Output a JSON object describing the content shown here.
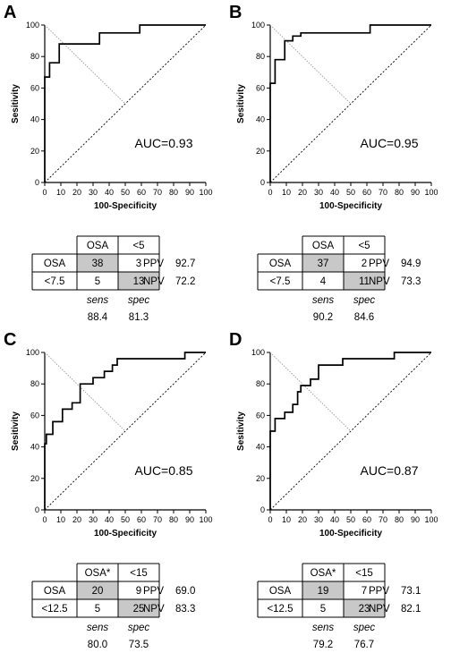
{
  "panels": [
    {
      "letter": "A",
      "chart_data": {
        "type": "line",
        "xlabel": "100-Specificity",
        "ylabel": "Sesitivity",
        "xlim": [
          0,
          100
        ],
        "ylim": [
          0,
          100
        ],
        "xticks": [
          "0",
          "10",
          "20",
          "30",
          "40",
          "50",
          "60",
          "70",
          "80",
          "90",
          "100"
        ],
        "yticks": [
          "0",
          "20",
          "40",
          "60",
          "80",
          "100"
        ],
        "roc": [
          [
            0,
            0
          ],
          [
            0,
            67
          ],
          [
            3,
            67
          ],
          [
            3,
            76
          ],
          [
            9,
            76
          ],
          [
            9,
            88
          ],
          [
            34,
            88
          ],
          [
            34,
            95
          ],
          [
            59,
            95
          ],
          [
            59,
            100
          ],
          [
            100,
            100
          ]
        ],
        "youden_line": [
          [
            0,
            100
          ],
          [
            50,
            50
          ]
        ],
        "annotation": "AUC=0.93"
      },
      "table": {
        "header": [
          "OSA",
          "<5"
        ],
        "rows": [
          {
            "label": "OSA",
            "cells": [
              "38",
              "3"
            ],
            "metric": "PPV",
            "metric_value": "92.7"
          },
          {
            "label": "<7.5",
            "cells": [
              "5",
              "13"
            ],
            "metric": "NPV",
            "metric_value": "72.2"
          }
        ],
        "shaded": [
          [
            0,
            0
          ],
          [
            1,
            1
          ]
        ],
        "footer_labels": [
          "sens",
          "spec"
        ],
        "footer_values": [
          "88.4",
          "81.3"
        ]
      }
    },
    {
      "letter": "B",
      "chart_data": {
        "type": "line",
        "xlabel": "100-Specificity",
        "ylabel": "Sesitivity",
        "xlim": [
          0,
          100
        ],
        "ylim": [
          0,
          100
        ],
        "xticks": [
          "0",
          "10",
          "20",
          "30",
          "40",
          "50",
          "60",
          "70",
          "80",
          "90",
          "100"
        ],
        "yticks": [
          "0",
          "20",
          "40",
          "60",
          "80",
          "100"
        ],
        "roc": [
          [
            0,
            0
          ],
          [
            0,
            63
          ],
          [
            3,
            63
          ],
          [
            3,
            78
          ],
          [
            9,
            78
          ],
          [
            9,
            90
          ],
          [
            14,
            90
          ],
          [
            14,
            93
          ],
          [
            19,
            93
          ],
          [
            19,
            95
          ],
          [
            62,
            95
          ],
          [
            62,
            100
          ],
          [
            100,
            100
          ]
        ],
        "youden_line": [
          [
            0,
            100
          ],
          [
            50,
            50
          ]
        ],
        "annotation": "AUC=0.95"
      },
      "table": {
        "header": [
          "OSA",
          "<5"
        ],
        "rows": [
          {
            "label": "OSA",
            "cells": [
              "37",
              "2"
            ],
            "metric": "PPV",
            "metric_value": "94.9"
          },
          {
            "label": "<7.5",
            "cells": [
              "4",
              "11"
            ],
            "metric": "NPV",
            "metric_value": "73.3"
          }
        ],
        "shaded": [
          [
            0,
            0
          ],
          [
            1,
            1
          ]
        ],
        "footer_labels": [
          "sens",
          "spec"
        ],
        "footer_values": [
          "90.2",
          "84.6"
        ]
      }
    },
    {
      "letter": "C",
      "chart_data": {
        "type": "line",
        "xlabel": "100-Specificity",
        "ylabel": "Sesitivity",
        "xlim": [
          0,
          100
        ],
        "ylim": [
          0,
          100
        ],
        "xticks": [
          "0",
          "10",
          "20",
          "30",
          "40",
          "50",
          "60",
          "70",
          "80",
          "90",
          "100"
        ],
        "yticks": [
          "0",
          "20",
          "40",
          "60",
          "80",
          "100"
        ],
        "roc": [
          [
            0,
            0
          ],
          [
            0,
            42
          ],
          [
            1,
            42
          ],
          [
            1,
            48
          ],
          [
            5,
            48
          ],
          [
            5,
            56
          ],
          [
            11,
            56
          ],
          [
            11,
            64
          ],
          [
            17,
            64
          ],
          [
            17,
            68
          ],
          [
            22,
            68
          ],
          [
            22,
            80
          ],
          [
            30,
            80
          ],
          [
            30,
            84
          ],
          [
            37,
            84
          ],
          [
            37,
            88
          ],
          [
            42,
            88
          ],
          [
            42,
            92
          ],
          [
            45,
            92
          ],
          [
            45,
            96
          ],
          [
            87,
            96
          ],
          [
            87,
            100
          ],
          [
            100,
            100
          ]
        ],
        "youden_line": [
          [
            0,
            100
          ],
          [
            50,
            50
          ]
        ],
        "annotation": "AUC=0.85"
      },
      "table": {
        "header": [
          "OSA*",
          "<15"
        ],
        "rows": [
          {
            "label": "OSA",
            "cells": [
              "20",
              "9"
            ],
            "metric": "PPV",
            "metric_value": "69.0"
          },
          {
            "label": "<12.5",
            "cells": [
              "5",
              "25"
            ],
            "metric": "NPV",
            "metric_value": "83.3"
          }
        ],
        "shaded": [
          [
            0,
            0
          ],
          [
            1,
            1
          ]
        ],
        "footer_labels": [
          "sens",
          "spec"
        ],
        "footer_values": [
          "80.0",
          "73.5"
        ]
      }
    },
    {
      "letter": "D",
      "chart_data": {
        "type": "line",
        "xlabel": "100-Specificity",
        "ylabel": "Sesitivity",
        "xlim": [
          0,
          100
        ],
        "ylim": [
          0,
          100
        ],
        "xticks": [
          "0",
          "10",
          "20",
          "30",
          "40",
          "50",
          "60",
          "70",
          "80",
          "90",
          "100"
        ],
        "yticks": [
          "0",
          "20",
          "40",
          "60",
          "80",
          "100"
        ],
        "roc": [
          [
            0,
            0
          ],
          [
            0,
            50
          ],
          [
            3,
            50
          ],
          [
            3,
            58
          ],
          [
            9,
            58
          ],
          [
            9,
            62
          ],
          [
            14,
            62
          ],
          [
            14,
            67
          ],
          [
            17,
            67
          ],
          [
            17,
            75
          ],
          [
            19,
            75
          ],
          [
            19,
            79
          ],
          [
            25,
            79
          ],
          [
            25,
            83
          ],
          [
            30,
            83
          ],
          [
            30,
            92
          ],
          [
            45,
            92
          ],
          [
            45,
            96
          ],
          [
            77,
            96
          ],
          [
            77,
            100
          ],
          [
            100,
            100
          ]
        ],
        "youden_line": [
          [
            0,
            100
          ],
          [
            50,
            50
          ]
        ],
        "annotation": "AUC=0.87"
      },
      "table": {
        "header": [
          "OSA*",
          "<15"
        ],
        "rows": [
          {
            "label": "OSA",
            "cells": [
              "19",
              "7"
            ],
            "metric": "PPV",
            "metric_value": "73.1"
          },
          {
            "label": "<12.5",
            "cells": [
              "5",
              "23"
            ],
            "metric": "NPV",
            "metric_value": "82.1"
          }
        ],
        "shaded": [
          [
            0,
            0
          ],
          [
            1,
            1
          ]
        ],
        "footer_labels": [
          "sens",
          "spec"
        ],
        "footer_values": [
          "79.2",
          "76.7"
        ]
      }
    }
  ],
  "colors": {
    "shade": "#c8c8c8",
    "line": "#000000",
    "youden": "#999999"
  }
}
